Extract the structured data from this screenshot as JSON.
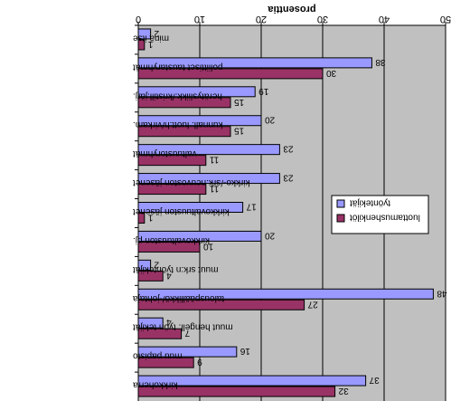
{
  "chart_data": {
    "type": "bar",
    "orientation": "horizontal",
    "title": "prosenttia",
    "xlim": [
      0,
      50
    ],
    "xticks": [
      0,
      10,
      20,
      30,
      40,
      50
    ],
    "grid": true,
    "legend_position": "right",
    "categories": [
      "minä itse",
      "poliittiset taustaryhmät",
      "herätysliikk./kristill.järj.",
      "kunnall. luott.h/virkam.",
      "valtuustoryhmät",
      "kirkko-/srk.neuvoston jäsenet",
      "kirkkovaltuuston jäsenet",
      "kirkkovaltuuston pj.",
      "muut srk:n työntekijät",
      "talouspäällikkö/-johtaja",
      "muut hengell. työn tekijät",
      "muu papisto",
      "kirkkoherra"
    ],
    "series": [
      {
        "name": "työntekijät",
        "color": "#9999ff",
        "values": [
          2,
          38,
          19,
          20,
          23,
          23,
          17,
          20,
          2,
          48,
          4,
          16,
          37
        ]
      },
      {
        "name": "luottamushenkilöt",
        "color": "#993366",
        "values": [
          1,
          30,
          15,
          15,
          11,
          11,
          1,
          10,
          4,
          27,
          7,
          9,
          32
        ]
      }
    ]
  }
}
